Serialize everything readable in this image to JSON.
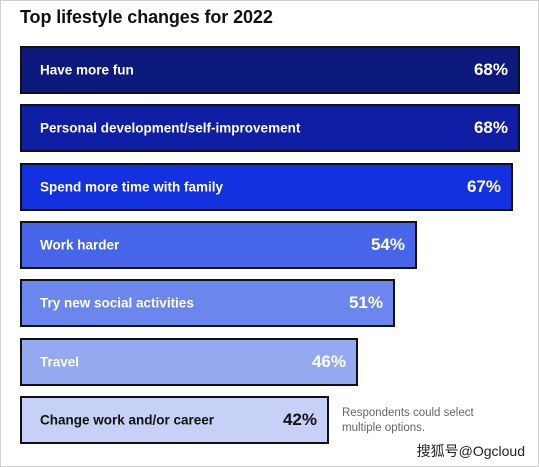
{
  "title": "Top lifestyle changes for 2022",
  "note": "Respondents could select multiple options.",
  "watermark": "搜狐号@Ogcloud",
  "chart_data": {
    "type": "bar",
    "orientation": "horizontal",
    "title": "Top lifestyle changes for 2022",
    "unit": "%",
    "ylim": [
      0,
      68
    ],
    "grid": false,
    "categories": [
      "Have more fun",
      "Personal development/self-improvement",
      "Spend more time with family",
      "Work harder",
      "Try new social activities",
      "Travel",
      "Change work and/or career"
    ],
    "values": [
      68,
      68,
      67,
      54,
      51,
      46,
      42
    ],
    "value_labels": [
      "68%",
      "68%",
      "67%",
      "54%",
      "51%",
      "46%",
      "42%"
    ],
    "colors": [
      "#0c1a7d",
      "#0e1fa6",
      "#1431e0",
      "#4765e8",
      "#6b86ec",
      "#95a9f1",
      "#c7d1f7"
    ],
    "label_colors": [
      "#ffffff",
      "#ffffff",
      "#ffffff",
      "#ffffff",
      "#ffffff",
      "#ffffff",
      "#111111"
    ]
  }
}
